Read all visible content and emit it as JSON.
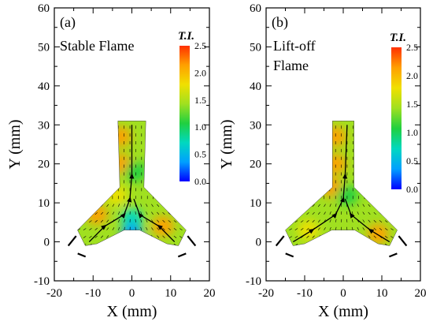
{
  "chart_data": [
    {
      "type": "heatmap",
      "panel_label": "(a)",
      "annotation": [
        "Stable Flame"
      ],
      "xlabel": "X (mm)",
      "ylabel": "Y (mm)",
      "xlim": [
        -20,
        20
      ],
      "ylim": [
        -10,
        60
      ],
      "xticks": [
        -20,
        -10,
        0,
        10,
        20
      ],
      "yticks": [
        -10,
        0,
        10,
        20,
        30,
        40,
        50,
        60
      ],
      "colorbar": {
        "title": "T.I.",
        "min": 0.0,
        "max": 2.5,
        "ticks": [
          "0.0",
          "0.5",
          "1.0",
          "1.5",
          "2.0",
          "2.5"
        ],
        "colormap": [
          "#0000ff",
          "#00a0ff",
          "#00d8c0",
          "#20d040",
          "#a0e020",
          "#f0e000",
          "#ffa000",
          "#ff3000"
        ]
      },
      "domain": {
        "branch_width": 10,
        "vertical_from_y": 10,
        "vertical_to_y": 31,
        "left_branch_end_x": -12,
        "right_branch_end_x": 12
      },
      "hotspots": [
        {
          "x": -3,
          "y": 27,
          "ti": 2.2
        },
        {
          "x": -3,
          "y": 20,
          "ti": 2.2
        },
        {
          "x": -9,
          "y": 7,
          "ti": 2.1
        },
        {
          "x": 8,
          "y": 4,
          "ti": 2.0
        },
        {
          "x": -4,
          "y": 12,
          "ti": 1.9
        },
        {
          "x": 0,
          "y": 6,
          "ti": 0.6
        },
        {
          "x": 0,
          "y": 2,
          "ti": 0.4
        },
        {
          "x": 1,
          "y": 18,
          "ti": 1.2
        }
      ],
      "streamlines": [
        [
          [
            -11,
            0
          ],
          [
            -7,
            4
          ],
          [
            -2,
            7
          ],
          [
            -0.5,
            11
          ],
          [
            0,
            17
          ],
          [
            0,
            30
          ]
        ],
        [
          [
            11,
            0
          ],
          [
            7,
            4
          ],
          [
            2,
            7
          ],
          [
            0.5,
            11
          ]
        ]
      ],
      "nozzle_marks": "bracket"
    },
    {
      "type": "heatmap",
      "panel_label": "(b)",
      "annotation": [
        "Lift-off",
        "Flame"
      ],
      "xlabel": "X (mm)",
      "ylabel": "Y (mm)",
      "xlim": [
        -20,
        20
      ],
      "ylim": [
        -10,
        60
      ],
      "xticks": [
        -20,
        -10,
        0,
        10,
        20
      ],
      "yticks": [
        -10,
        0,
        10,
        20,
        30,
        40,
        50,
        60
      ],
      "colorbar": {
        "title": "T.I.",
        "min": 0.0,
        "max": 2.5,
        "ticks": [
          "0.0",
          "0.5",
          "1.0",
          "1.5",
          "2.0",
          "2.5"
        ],
        "colormap": [
          "#0000ff",
          "#00a0ff",
          "#00d8c0",
          "#20d040",
          "#a0e020",
          "#f0e000",
          "#ffa000",
          "#ff3000"
        ]
      },
      "domain": {
        "branch_width": 5,
        "vertical_from_y": 10,
        "vertical_to_y": 31,
        "left_branch_end_x": -13,
        "right_branch_end_x": 12
      },
      "hotspots": [
        {
          "x": -2,
          "y": 27,
          "ti": 2.2
        },
        {
          "x": -2,
          "y": 20,
          "ti": 2.1
        },
        {
          "x": -3,
          "y": 14,
          "ti": 2.0
        },
        {
          "x": -9,
          "y": 3,
          "ti": 1.9
        },
        {
          "x": 9,
          "y": 2,
          "ti": 2.0
        },
        {
          "x": 1,
          "y": 12,
          "ti": 1.1
        }
      ],
      "streamlines": [
        [
          [
            -13,
            0
          ],
          [
            -8,
            3
          ],
          [
            -2,
            7
          ],
          [
            0,
            11
          ],
          [
            0.5,
            17
          ],
          [
            1,
            30
          ]
        ],
        [
          [
            12,
            0
          ],
          [
            7,
            3
          ],
          [
            2,
            7
          ],
          [
            0.5,
            11
          ]
        ]
      ],
      "nozzle_marks": "bracket"
    }
  ]
}
